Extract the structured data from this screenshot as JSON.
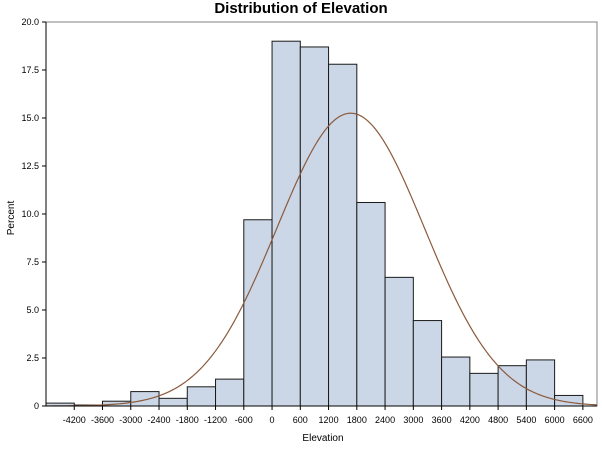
{
  "chart_data": {
    "type": "bar",
    "title": "Distribution of Elevation",
    "xlabel": "Elevation",
    "ylabel": "Percent",
    "bin_width": 600,
    "bins": [
      {
        "x": -4500,
        "value": 0.15
      },
      {
        "x": -3900,
        "value": 0.05
      },
      {
        "x": -3300,
        "value": 0.25
      },
      {
        "x": -2700,
        "value": 0.75
      },
      {
        "x": -2100,
        "value": 0.4
      },
      {
        "x": -1500,
        "value": 1.0
      },
      {
        "x": -900,
        "value": 1.4
      },
      {
        "x": -300,
        "value": 9.7
      },
      {
        "x": 300,
        "value": 19.0
      },
      {
        "x": 900,
        "value": 18.7
      },
      {
        "x": 1500,
        "value": 17.8
      },
      {
        "x": 2100,
        "value": 10.6
      },
      {
        "x": 2700,
        "value": 6.7
      },
      {
        "x": 3300,
        "value": 4.45
      },
      {
        "x": 3900,
        "value": 2.55
      },
      {
        "x": 4500,
        "value": 1.7
      },
      {
        "x": 5100,
        "value": 2.1
      },
      {
        "x": 5700,
        "value": 2.4
      },
      {
        "x": 6300,
        "value": 0.55
      }
    ],
    "x_ticks": [
      "-4200",
      "-3600",
      "-3000",
      "-2400",
      "-1800",
      "-1200",
      "-600",
      "0",
      "600",
      "1200",
      "1800",
      "2400",
      "3000",
      "3600",
      "4200",
      "4800",
      "5400",
      "6000",
      "6600"
    ],
    "y_ticks": [
      "0",
      "2.5",
      "5.0",
      "7.5",
      "10.0",
      "12.5",
      "15.0",
      "17.5",
      "20.0"
    ],
    "xlim": [
      -4800,
      6900
    ],
    "ylim": [
      0,
      20
    ],
    "curve": {
      "type": "normal",
      "mean": 1670,
      "std": 1570,
      "peak_percent": 15.25
    },
    "grid": false,
    "colors": {
      "bar_fill": "#cbd7e6",
      "bar_stroke": "#1a1a1a",
      "curve": "#8b5a3c"
    }
  }
}
